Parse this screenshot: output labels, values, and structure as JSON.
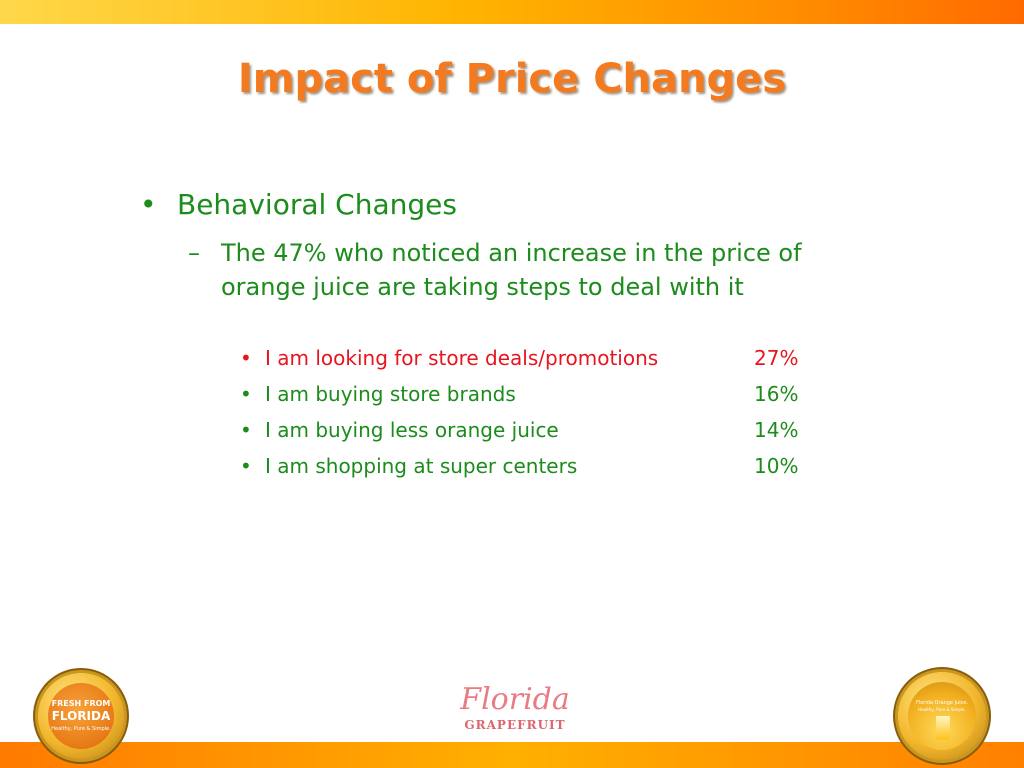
{
  "slide": {
    "title": "Impact of Price Changes",
    "bullet_level1": {
      "marker": "•",
      "text": "Behavioral Changes"
    },
    "bullet_level2": {
      "marker": "–",
      "text": "The 47% who noticed an increase in the price of orange juice are taking steps to deal with it"
    },
    "items": [
      {
        "marker": "•",
        "label": "I am looking for store deals/promotions",
        "value": "27%",
        "color": "#e8141e"
      },
      {
        "marker": "•",
        "label": "I am buying store brands",
        "value": "16%",
        "color": "#1c8c1c"
      },
      {
        "marker": "•",
        "label": "I am buying less orange juice",
        "value": "14%",
        "color": "#1c8c1c"
      },
      {
        "marker": "•",
        "label": "I am shopping at super centers",
        "value": "10%",
        "color": "#1c8c1c"
      }
    ]
  },
  "footer": {
    "left_seal": {
      "line1": "FRESH FROM",
      "line2": "FLORIDA",
      "line3": "Healthy, Pure & Simple."
    },
    "center_logo": {
      "script": "Florida",
      "sub": "GRAPEFRUIT"
    },
    "right_seal": {
      "line1": "Florida Orange Juice.",
      "line2": "Healthy, Pure & Simple."
    }
  },
  "colors": {
    "title": "#f47a1f",
    "body_green": "#1c8c1c",
    "highlight_red": "#e8141e",
    "bar_orange": "#ff8a00"
  }
}
